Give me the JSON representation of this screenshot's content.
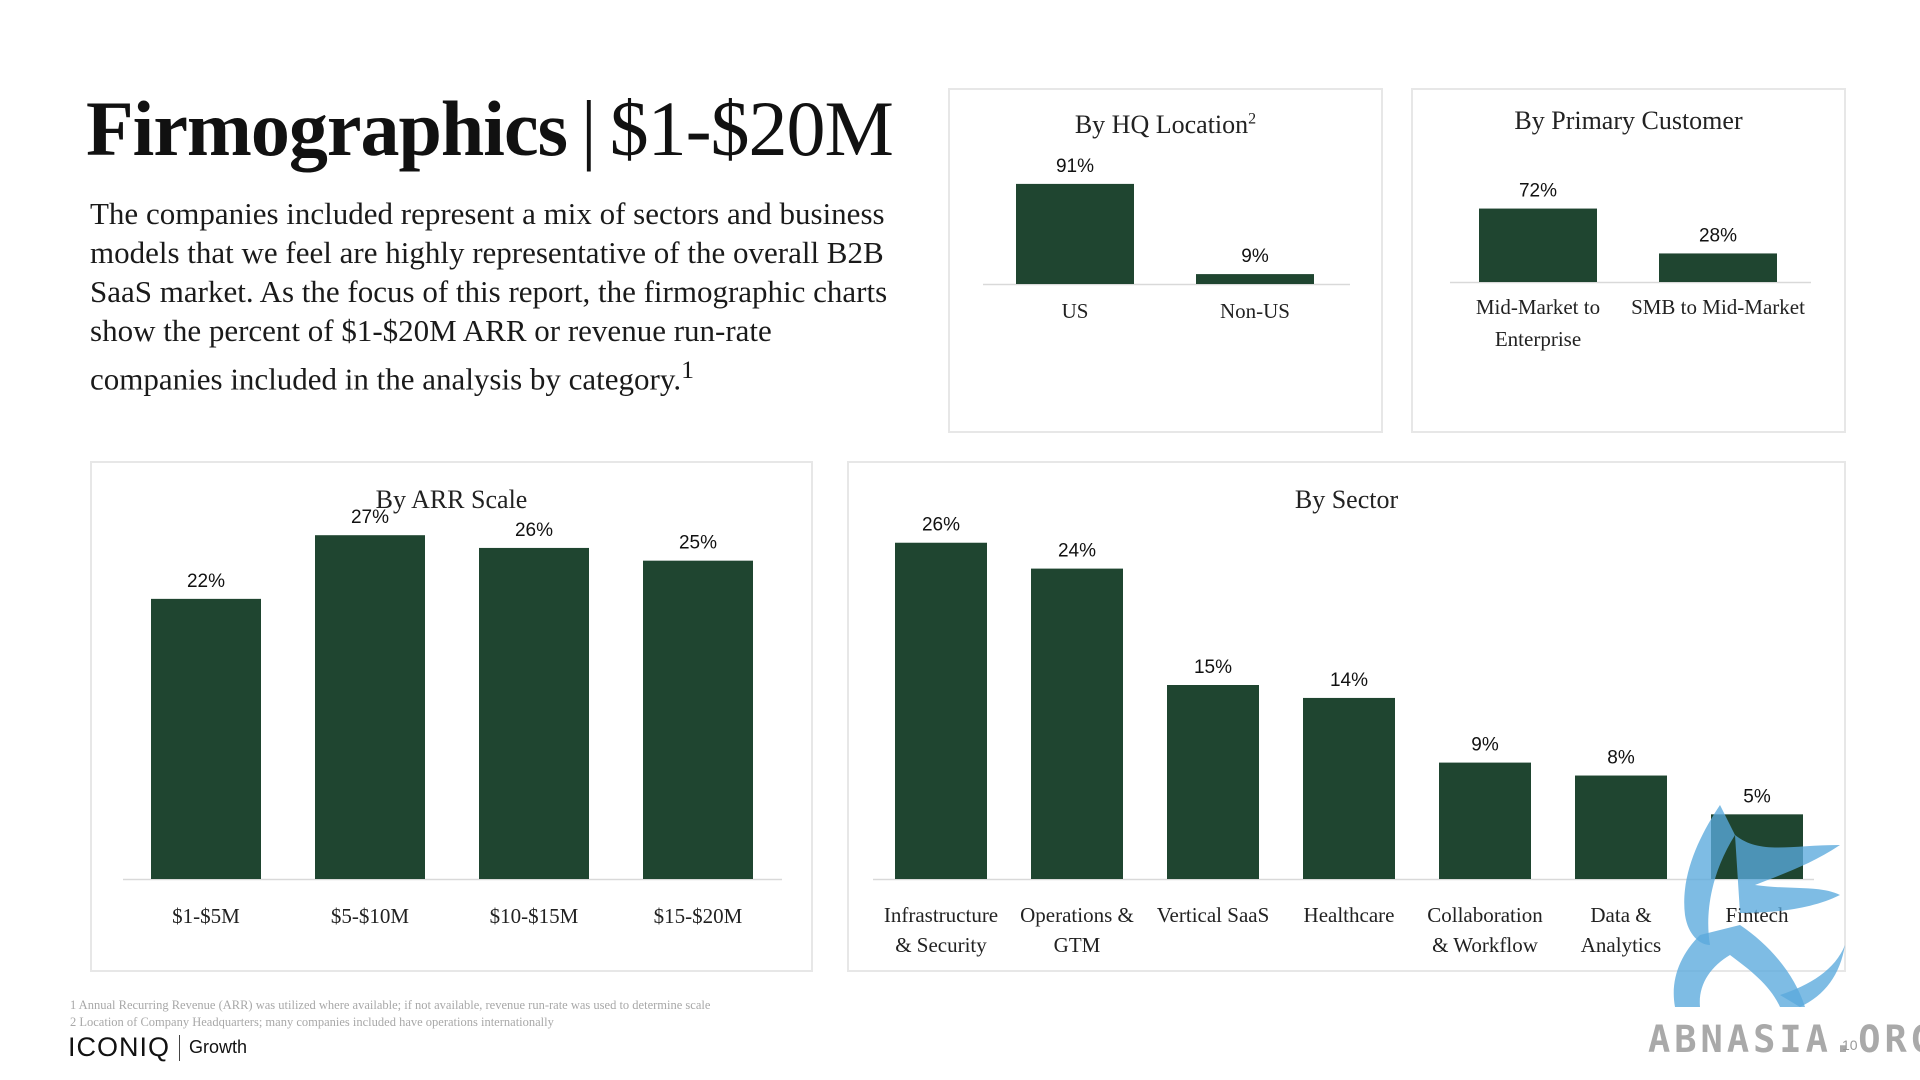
{
  "header": {
    "title": "Firmographics",
    "separator": "|",
    "range": "$1-$20M",
    "intro": "The companies included represent a mix of sectors and business models that we feel are highly representative of the overall B2B SaaS market. As the focus of this report, the firmographic charts show the percent of $1-$20M ARR or revenue run-rate companies included in the analysis by category.",
    "intro_footnote": "1"
  },
  "colors": {
    "bar": "#1f4530",
    "axis": "#d9d9d9"
  },
  "chart_data": [
    {
      "id": "hq",
      "type": "bar",
      "title": "By HQ Location",
      "title_footnote": "2",
      "categories": [
        [
          "US"
        ],
        [
          "Non-US"
        ]
      ],
      "values": [
        91,
        9
      ],
      "labels": [
        "91%",
        "9%"
      ],
      "ylim": [
        0,
        100
      ]
    },
    {
      "id": "customer",
      "type": "bar",
      "title": "By Primary Customer",
      "categories": [
        [
          "Mid-Market to",
          "Enterprise"
        ],
        [
          "SMB to Mid-Market"
        ]
      ],
      "values": [
        72,
        28
      ],
      "labels": [
        "72%",
        "28%"
      ],
      "ylim": [
        0,
        100
      ]
    },
    {
      "id": "arr",
      "type": "bar",
      "title": "By ARR Scale",
      "categories": [
        [
          "$1-$5M"
        ],
        [
          "$5-$10M"
        ],
        [
          "$10-$15M"
        ],
        [
          "$15-$20M"
        ]
      ],
      "values": [
        22,
        27,
        26,
        25
      ],
      "labels": [
        "22%",
        "27%",
        "26%",
        "25%"
      ],
      "ylim": [
        0,
        30
      ]
    },
    {
      "id": "sector",
      "type": "bar",
      "title": "By Sector",
      "categories": [
        [
          "Infrastructure",
          "& Security"
        ],
        [
          "Operations &",
          "GTM"
        ],
        [
          "Vertical SaaS"
        ],
        [
          "Healthcare"
        ],
        [
          "Collaboration",
          "& Workflow"
        ],
        [
          "Data &",
          "Analytics"
        ],
        [
          "Fintech"
        ]
      ],
      "values": [
        26,
        24,
        15,
        14,
        9,
        8,
        5
      ],
      "labels": [
        "26%",
        "24%",
        "15%",
        "14%",
        "9%",
        "8%",
        "5%"
      ],
      "ylim": [
        0,
        30
      ]
    }
  ],
  "footnotes": [
    "1 Annual Recurring Revenue (ARR) was utilized where available; if not available, revenue run-rate was used to determine scale",
    "2 Location of Company Headquarters; many companies included have operations internationally"
  ],
  "brand": {
    "logo": "ICONIQ",
    "sub": "Growth"
  },
  "page_number": "10",
  "watermark": {
    "text": "ABNASIA.ORG"
  }
}
